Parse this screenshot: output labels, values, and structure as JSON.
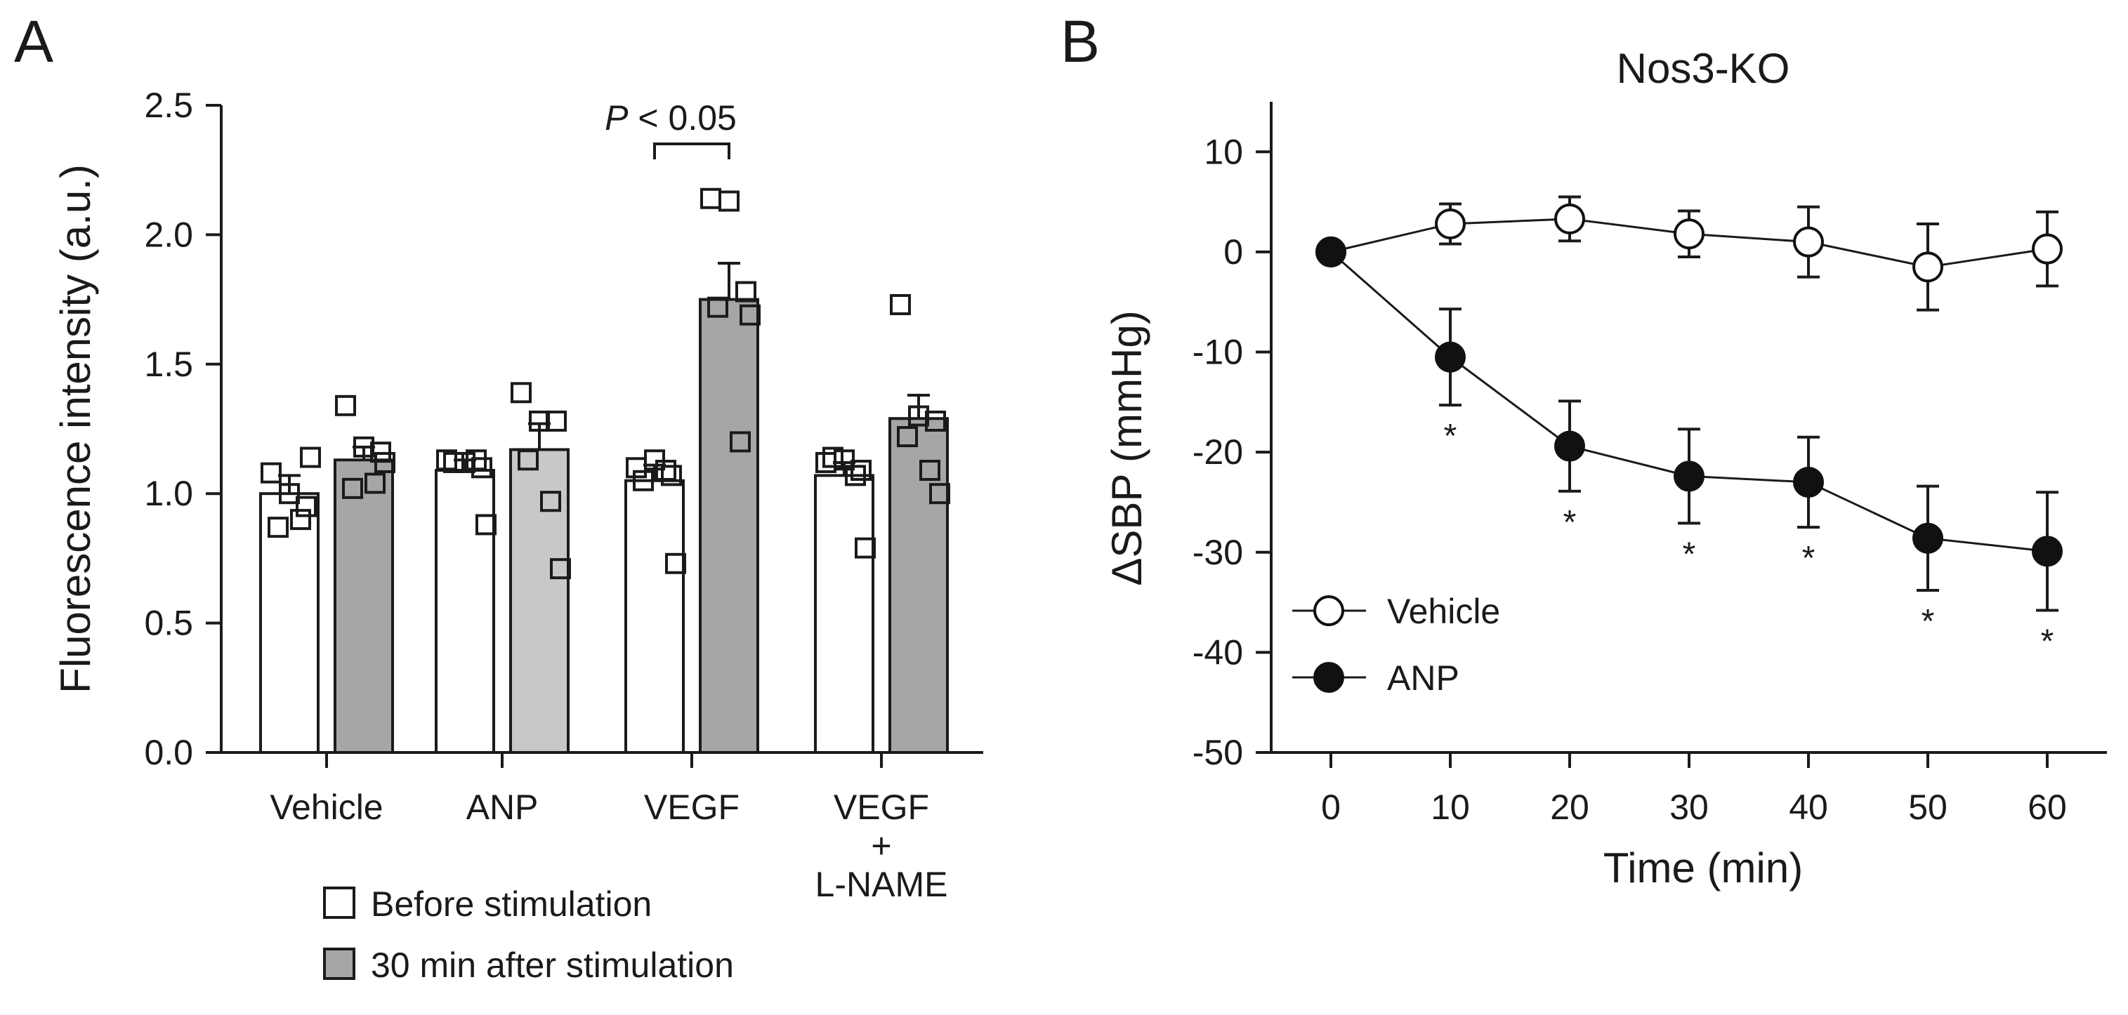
{
  "chart_data": [
    {
      "panel": "A",
      "type": "bar",
      "title": "",
      "ylabel": "Fluorescence intensity (a.u.)",
      "ylim": [
        0,
        2.5
      ],
      "yticks": [
        0.0,
        0.5,
        1.0,
        1.5,
        2.0,
        2.5
      ],
      "ytick_labels": [
        "0.0",
        "0.5",
        "1.0",
        "1.5",
        "2.0",
        "2.5"
      ],
      "categories": [
        "Vehicle",
        "ANP",
        "VEGF",
        "VEGF + L-NAME"
      ],
      "category_lines": [
        [
          "Vehicle"
        ],
        [
          "ANP"
        ],
        [
          "VEGF"
        ],
        [
          "VEGF",
          "+",
          "L-NAME"
        ]
      ],
      "series": [
        {
          "name": "Before stimulation",
          "color": "#ffffff",
          "values": [
            1.0,
            1.09,
            1.05,
            1.07
          ],
          "sem": [
            0.07,
            0.04,
            0.06,
            0.05
          ],
          "points": [
            [
              1.08,
              1.0,
              0.95,
              0.87,
              0.9,
              1.14
            ],
            [
              1.13,
              1.12,
              1.1,
              1.12,
              1.13,
              0.88
            ],
            [
              1.1,
              1.13,
              1.07,
              1.05,
              1.09,
              0.73
            ],
            [
              1.12,
              1.13,
              1.09,
              1.14,
              1.07,
              0.79
            ]
          ]
        },
        {
          "name": "30 min after stimulation",
          "color": "#a6a6a6",
          "values": [
            1.13,
            1.17,
            1.75,
            1.29
          ],
          "sem": [
            0.05,
            0.1,
            0.14,
            0.09
          ],
          "points": [
            [
              1.34,
              1.18,
              1.16,
              1.02,
              1.04,
              1.12
            ],
            [
              1.39,
              1.28,
              1.28,
              1.13,
              0.97,
              0.71
            ],
            [
              2.14,
              2.13,
              1.78,
              1.72,
              1.2,
              1.69
            ],
            [
              1.73,
              1.3,
              1.28,
              1.22,
              1.09,
              1.0
            ]
          ]
        }
      ],
      "series_colors_override": [
        null,
        [
          "#a6a6a6",
          "#c8c8c8",
          "#a6a6a6",
          "#a6a6a6"
        ]
      ],
      "annotation": {
        "text": "P",
        "suffix": " < 0.05",
        "between_category": "VEGF"
      },
      "legend": [
        "Before stimulation",
        "30 min after stimulation"
      ]
    },
    {
      "panel": "B",
      "type": "line",
      "title": "Nos3-KO",
      "xlabel": "Time (min)",
      "ylabel": "ΔSBP (mmHg)",
      "x": [
        0,
        10,
        20,
        30,
        40,
        50,
        60
      ],
      "xlim": [
        -5,
        65
      ],
      "ylim": [
        -50,
        15
      ],
      "xticks": [
        0,
        10,
        20,
        30,
        40,
        50,
        60
      ],
      "yticks": [
        10,
        0,
        -10,
        -20,
        -30,
        -40,
        -50
      ],
      "series": [
        {
          "name": "Vehicle",
          "marker": "open-circle",
          "values": [
            0,
            2.8,
            3.3,
            1.8,
            1.0,
            -1.5,
            0.3
          ],
          "sem": [
            0,
            2.0,
            2.2,
            2.3,
            3.5,
            4.3,
            3.7
          ]
        },
        {
          "name": "ANP",
          "marker": "filled-circle",
          "values": [
            0,
            -10.5,
            -19.4,
            -22.4,
            -23.0,
            -28.6,
            -29.9
          ],
          "sem": [
            0,
            4.8,
            4.5,
            4.7,
            4.5,
            5.2,
            5.9
          ]
        }
      ],
      "significance_marks": [
        "",
        "*",
        "*",
        "*",
        "*",
        "*",
        "*"
      ],
      "legend": [
        "Vehicle",
        "ANP"
      ]
    }
  ],
  "labels": {
    "panel_a": "A",
    "panel_b": "B"
  }
}
